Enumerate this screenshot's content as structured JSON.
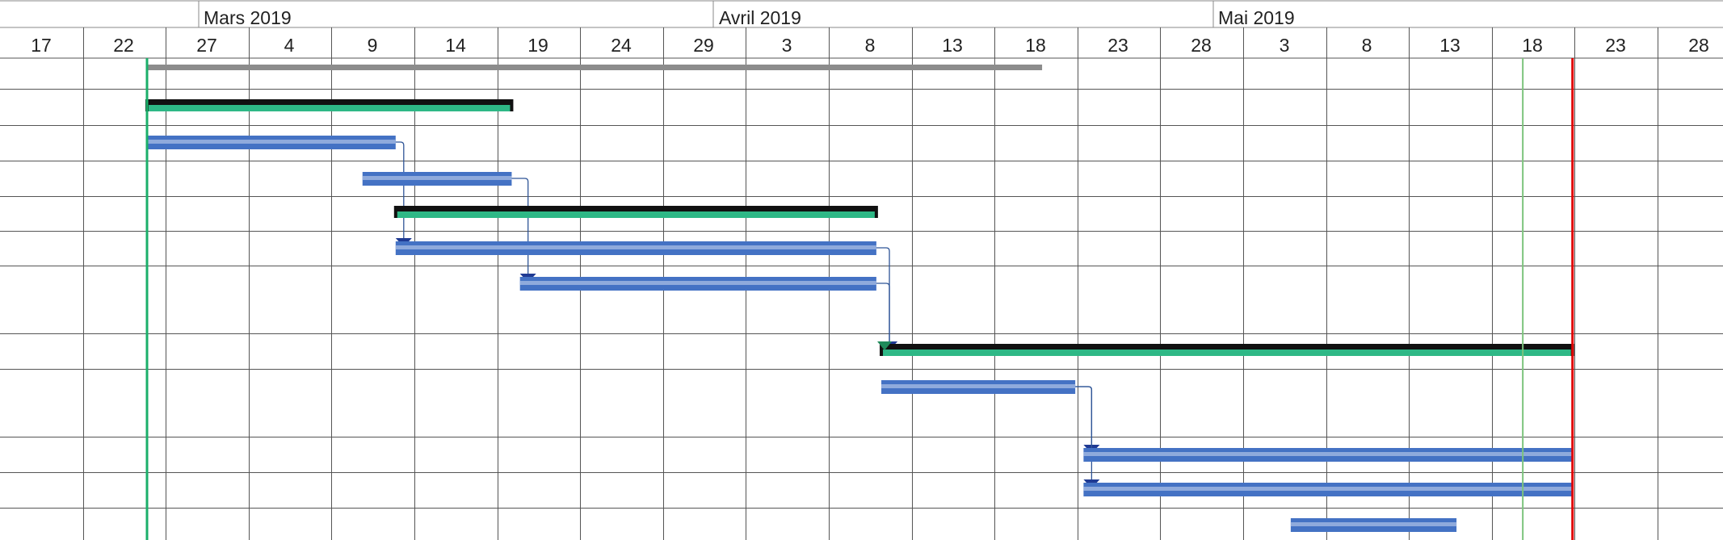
{
  "timescale": {
    "months": [
      "Mars 2019",
      "Avril 2019",
      "Mai 2019"
    ],
    "days": [
      "17",
      "22",
      "27",
      "4",
      "9",
      "14",
      "19",
      "24",
      "29",
      "3",
      "8",
      "13",
      "18",
      "23",
      "28",
      "3",
      "8",
      "13",
      "18",
      "23",
      "28"
    ]
  },
  "colors": {
    "summary_top": "#111111",
    "summary_fill": "#2EB886",
    "task_fill": "#4472C4",
    "task_stripe": "#8FAADC",
    "project_bar": "#8C8C8C",
    "link": "#2F5597",
    "link_arrow": "#1F3A93",
    "milestone_arrow": "#1F8A5A",
    "start_line": "#1BAF6A",
    "deadline_line": "#E00000",
    "today_line": "#7CC47C",
    "grid": "#555555"
  },
  "bars": [
    {
      "id": "project",
      "type": "project",
      "start": 0,
      "end": 54
    },
    {
      "id": "s1",
      "type": "summary",
      "start": 0,
      "end": 22
    },
    {
      "id": "t1",
      "type": "task",
      "start": 0,
      "end": 15
    },
    {
      "id": "t2",
      "type": "task",
      "start": 13,
      "end": 22
    },
    {
      "id": "s2",
      "type": "summary",
      "start": 15,
      "end": 44
    },
    {
      "id": "t3",
      "type": "task",
      "start": 15,
      "end": 44
    },
    {
      "id": "t4",
      "type": "task",
      "start": 22.5,
      "end": 44
    },
    {
      "id": "s3",
      "type": "summary",
      "start": 44.3,
      "end": 86
    },
    {
      "id": "t5",
      "type": "task",
      "start": 44.3,
      "end": 56
    },
    {
      "id": "t6",
      "type": "task",
      "start": 56.5,
      "end": 86
    },
    {
      "id": "t7",
      "type": "task",
      "start": 56.5,
      "end": 86
    },
    {
      "id": "t8",
      "type": "task",
      "start": 69,
      "end": 79
    }
  ],
  "markers": {
    "project_start": 0,
    "today": 83,
    "deadline": 86
  }
}
